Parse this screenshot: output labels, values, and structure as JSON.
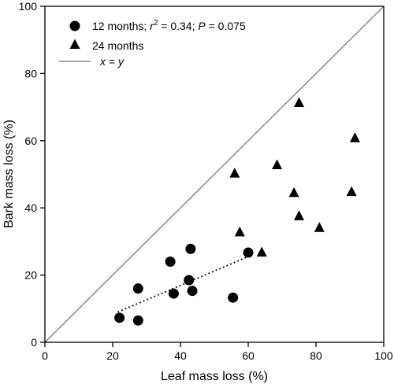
{
  "chart_data": {
    "type": "scatter",
    "xlabel": "Leaf mass loss (%)",
    "ylabel": "Bark mass loss (%)",
    "xlim": [
      0,
      100
    ],
    "ylim": [
      0,
      100
    ],
    "xticks": [
      0,
      20,
      40,
      60,
      80,
      100
    ],
    "yticks": [
      0,
      20,
      40,
      60,
      80,
      100
    ],
    "grid": false,
    "legend_position": "top-left",
    "series": [
      {
        "key": "m12",
        "marker": "circle",
        "legend_prefix": "12 months; ",
        "legend_r2": "r",
        "legend_r2_sup": "2",
        "legend_r2_val": " = 0.34; ",
        "legend_p": "P",
        "legend_p_val": " = 0.075",
        "points": [
          {
            "x": 22,
            "y": 7.3
          },
          {
            "x": 27.5,
            "y": 6.5
          },
          {
            "x": 27.5,
            "y": 16
          },
          {
            "x": 37,
            "y": 24
          },
          {
            "x": 38,
            "y": 14.5
          },
          {
            "x": 42.5,
            "y": 18.5
          },
          {
            "x": 43,
            "y": 27.8
          },
          {
            "x": 43.5,
            "y": 15.3
          },
          {
            "x": 55.5,
            "y": 13.3
          },
          {
            "x": 60,
            "y": 26.7
          }
        ],
        "fit": {
          "x1": 21.5,
          "y1": 9,
          "x2": 60,
          "y2": 25.5
        }
      },
      {
        "key": "m24",
        "marker": "triangle",
        "legend": "24 months",
        "points": [
          {
            "x": 56,
            "y": 50.5
          },
          {
            "x": 57.5,
            "y": 33
          },
          {
            "x": 64,
            "y": 27
          },
          {
            "x": 68.5,
            "y": 53
          },
          {
            "x": 73.5,
            "y": 44.7
          },
          {
            "x": 75,
            "y": 71.5
          },
          {
            "x": 75,
            "y": 37.8
          },
          {
            "x": 81,
            "y": 34.3
          },
          {
            "x": 90.5,
            "y": 45
          },
          {
            "x": 91.5,
            "y": 61
          }
        ]
      }
    ],
    "reference_line": {
      "legend_x": "x",
      "legend_eq": " = ",
      "legend_y": "y",
      "color": "#888888"
    }
  }
}
